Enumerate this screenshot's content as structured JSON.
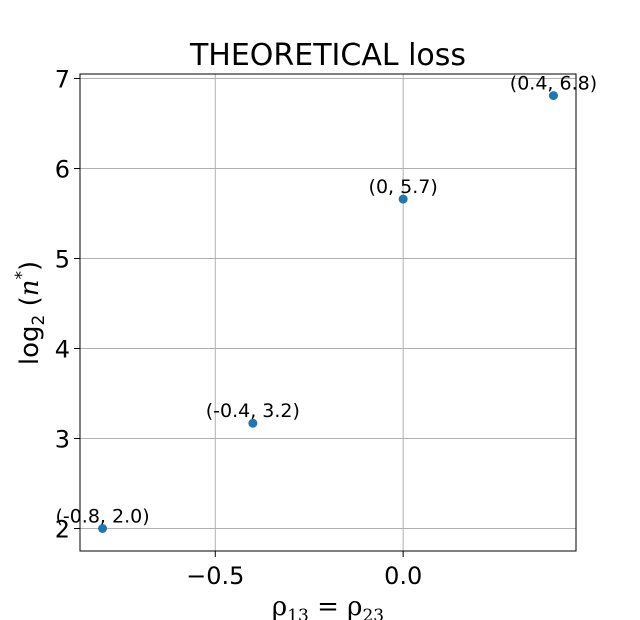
{
  "chart_data": {
    "type": "scatter",
    "title": "THEORETICAL loss",
    "xlabel": "ρ13 = ρ23",
    "ylabel": "log2 (n*)",
    "xlim": [
      -0.86,
      0.46
    ],
    "ylim": [
      1.75,
      7.05
    ],
    "xticks": [
      -0.5,
      0.0
    ],
    "xtick_labels": [
      "−0.5",
      "0.0"
    ],
    "yticks": [
      2,
      3,
      4,
      5,
      6,
      7
    ],
    "ytick_labels": [
      "2",
      "3",
      "4",
      "5",
      "6",
      "7"
    ],
    "grid": true,
    "color": "#1f77b4",
    "points": [
      {
        "x": -0.8,
        "y": 2.0,
        "label": "(-0.8, 2.0)"
      },
      {
        "x": -0.4,
        "y": 3.17,
        "label": "(-0.4, 3.2)"
      },
      {
        "x": 0.0,
        "y": 5.66,
        "label": "(0, 5.7)"
      },
      {
        "x": 0.4,
        "y": 6.81,
        "label": "(0.4, 6.8)"
      }
    ]
  }
}
